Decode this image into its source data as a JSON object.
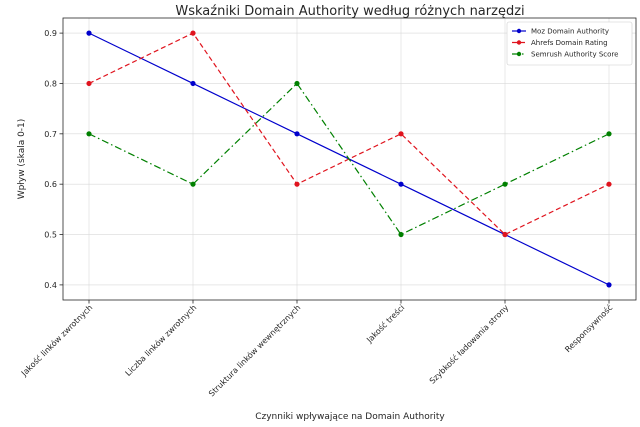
{
  "chart_data": {
    "type": "line",
    "title": "Wskaźniki Domain Authority według różnych narzędzi",
    "xlabel": "Czynniki wpływające na Domain Authority",
    "ylabel": "Wpływ (skala 0-1)",
    "categories": [
      "Jakość linków zwrotnych",
      "Liczba linków zwrotnych",
      "Struktura linków wewnętrznych",
      "Jakość treści",
      "Szybkość ładowania strony",
      "Responsywność"
    ],
    "ylim": [
      0.37,
      0.93
    ],
    "yticks": [
      0.4,
      0.5,
      0.6,
      0.7,
      0.8,
      0.9
    ],
    "grid": true,
    "legend_position": "top-right",
    "series": [
      {
        "name": "Moz Domain Authority",
        "color": "#0000cc",
        "dash": "solid",
        "values": [
          0.9,
          0.8,
          0.7,
          0.6,
          0.5,
          0.4
        ]
      },
      {
        "name": "Ahrefs Domain Rating",
        "color": "#e0141e",
        "dash": "dashed",
        "values": [
          0.8,
          0.9,
          0.6,
          0.7,
          0.5,
          0.6
        ]
      },
      {
        "name": "Semrush Authority Score",
        "color": "#008000",
        "dash": "dashdot",
        "values": [
          0.7,
          0.6,
          0.8,
          0.5,
          0.6,
          0.7
        ]
      }
    ]
  }
}
